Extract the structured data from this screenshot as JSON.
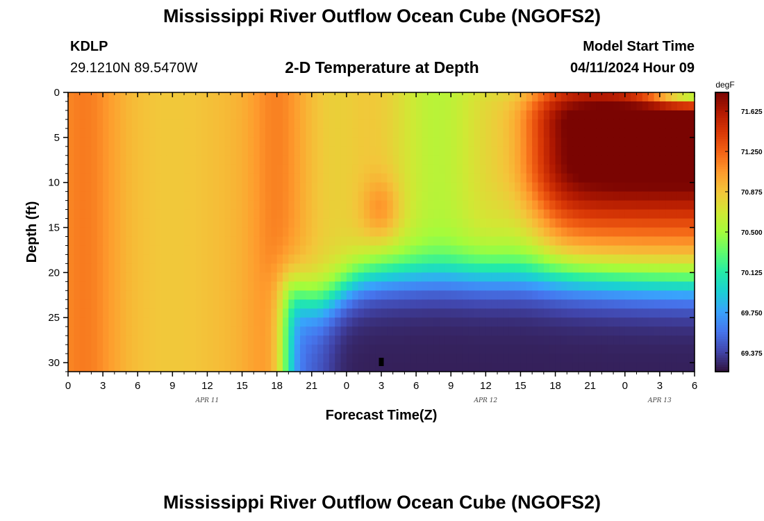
{
  "header": {
    "title": "Mississippi River Outflow Ocean Cube (NGOFS2)",
    "station_id": "KDLP",
    "station_coords": "29.1210N  89.5470W",
    "plot_subtitle": "2-D Temperature at Depth",
    "model_start_label": "Model Start Time",
    "model_start_value": "04/11/2024 Hour 09"
  },
  "footer": {
    "title": "Mississippi River Outflow Ocean Cube (NGOFS2)"
  },
  "chart_data": {
    "type": "heatmap",
    "title": "2-D Temperature at Depth",
    "xlabel": "Forecast Time(Z)",
    "ylabel": "Depth (ft)",
    "x_tick_labels": [
      "0",
      "3",
      "6",
      "9",
      "12",
      "15",
      "18",
      "21",
      "0",
      "3",
      "6",
      "9",
      "12",
      "15",
      "18",
      "21",
      "0",
      "3",
      "6"
    ],
    "date_labels": [
      {
        "label": "APR 11",
        "at_hour": 12
      },
      {
        "label": "APR 12",
        "at_hour": 36
      },
      {
        "label": "APR 13",
        "at_hour": 51
      }
    ],
    "x_range_hours": [
      0,
      54
    ],
    "y_range_ft": [
      0,
      31
    ],
    "y_ticks": [
      0,
      5,
      10,
      15,
      20,
      25,
      30
    ],
    "y_inverted": true,
    "colorbar": {
      "unit": "degF",
      "range": [
        69.2,
        71.8
      ],
      "ticks": [
        "71.625",
        "71.250",
        "70.875",
        "70.500",
        "70.125",
        "69.750",
        "69.375"
      ],
      "tick_values": [
        71.625,
        71.25,
        70.875,
        70.5,
        70.125,
        69.75,
        69.375
      ],
      "colors": [
        "#30123b",
        "#4145ab",
        "#4675ed",
        "#39a2fc",
        "#1bcfd4",
        "#24eca6",
        "#61fc6c",
        "#a4fc3b",
        "#d1e834",
        "#f3c63a",
        "#fe9b2d",
        "#f36315",
        "#d93806",
        "#b11901",
        "#7a0402"
      ]
    },
    "field_description_values": {
      "surface_early_degF": 71.15,
      "midrange_surface_degF": 70.4,
      "late_mid_depth_max_degF": 71.75,
      "bottom_after_day1_degF": 69.3
    }
  }
}
